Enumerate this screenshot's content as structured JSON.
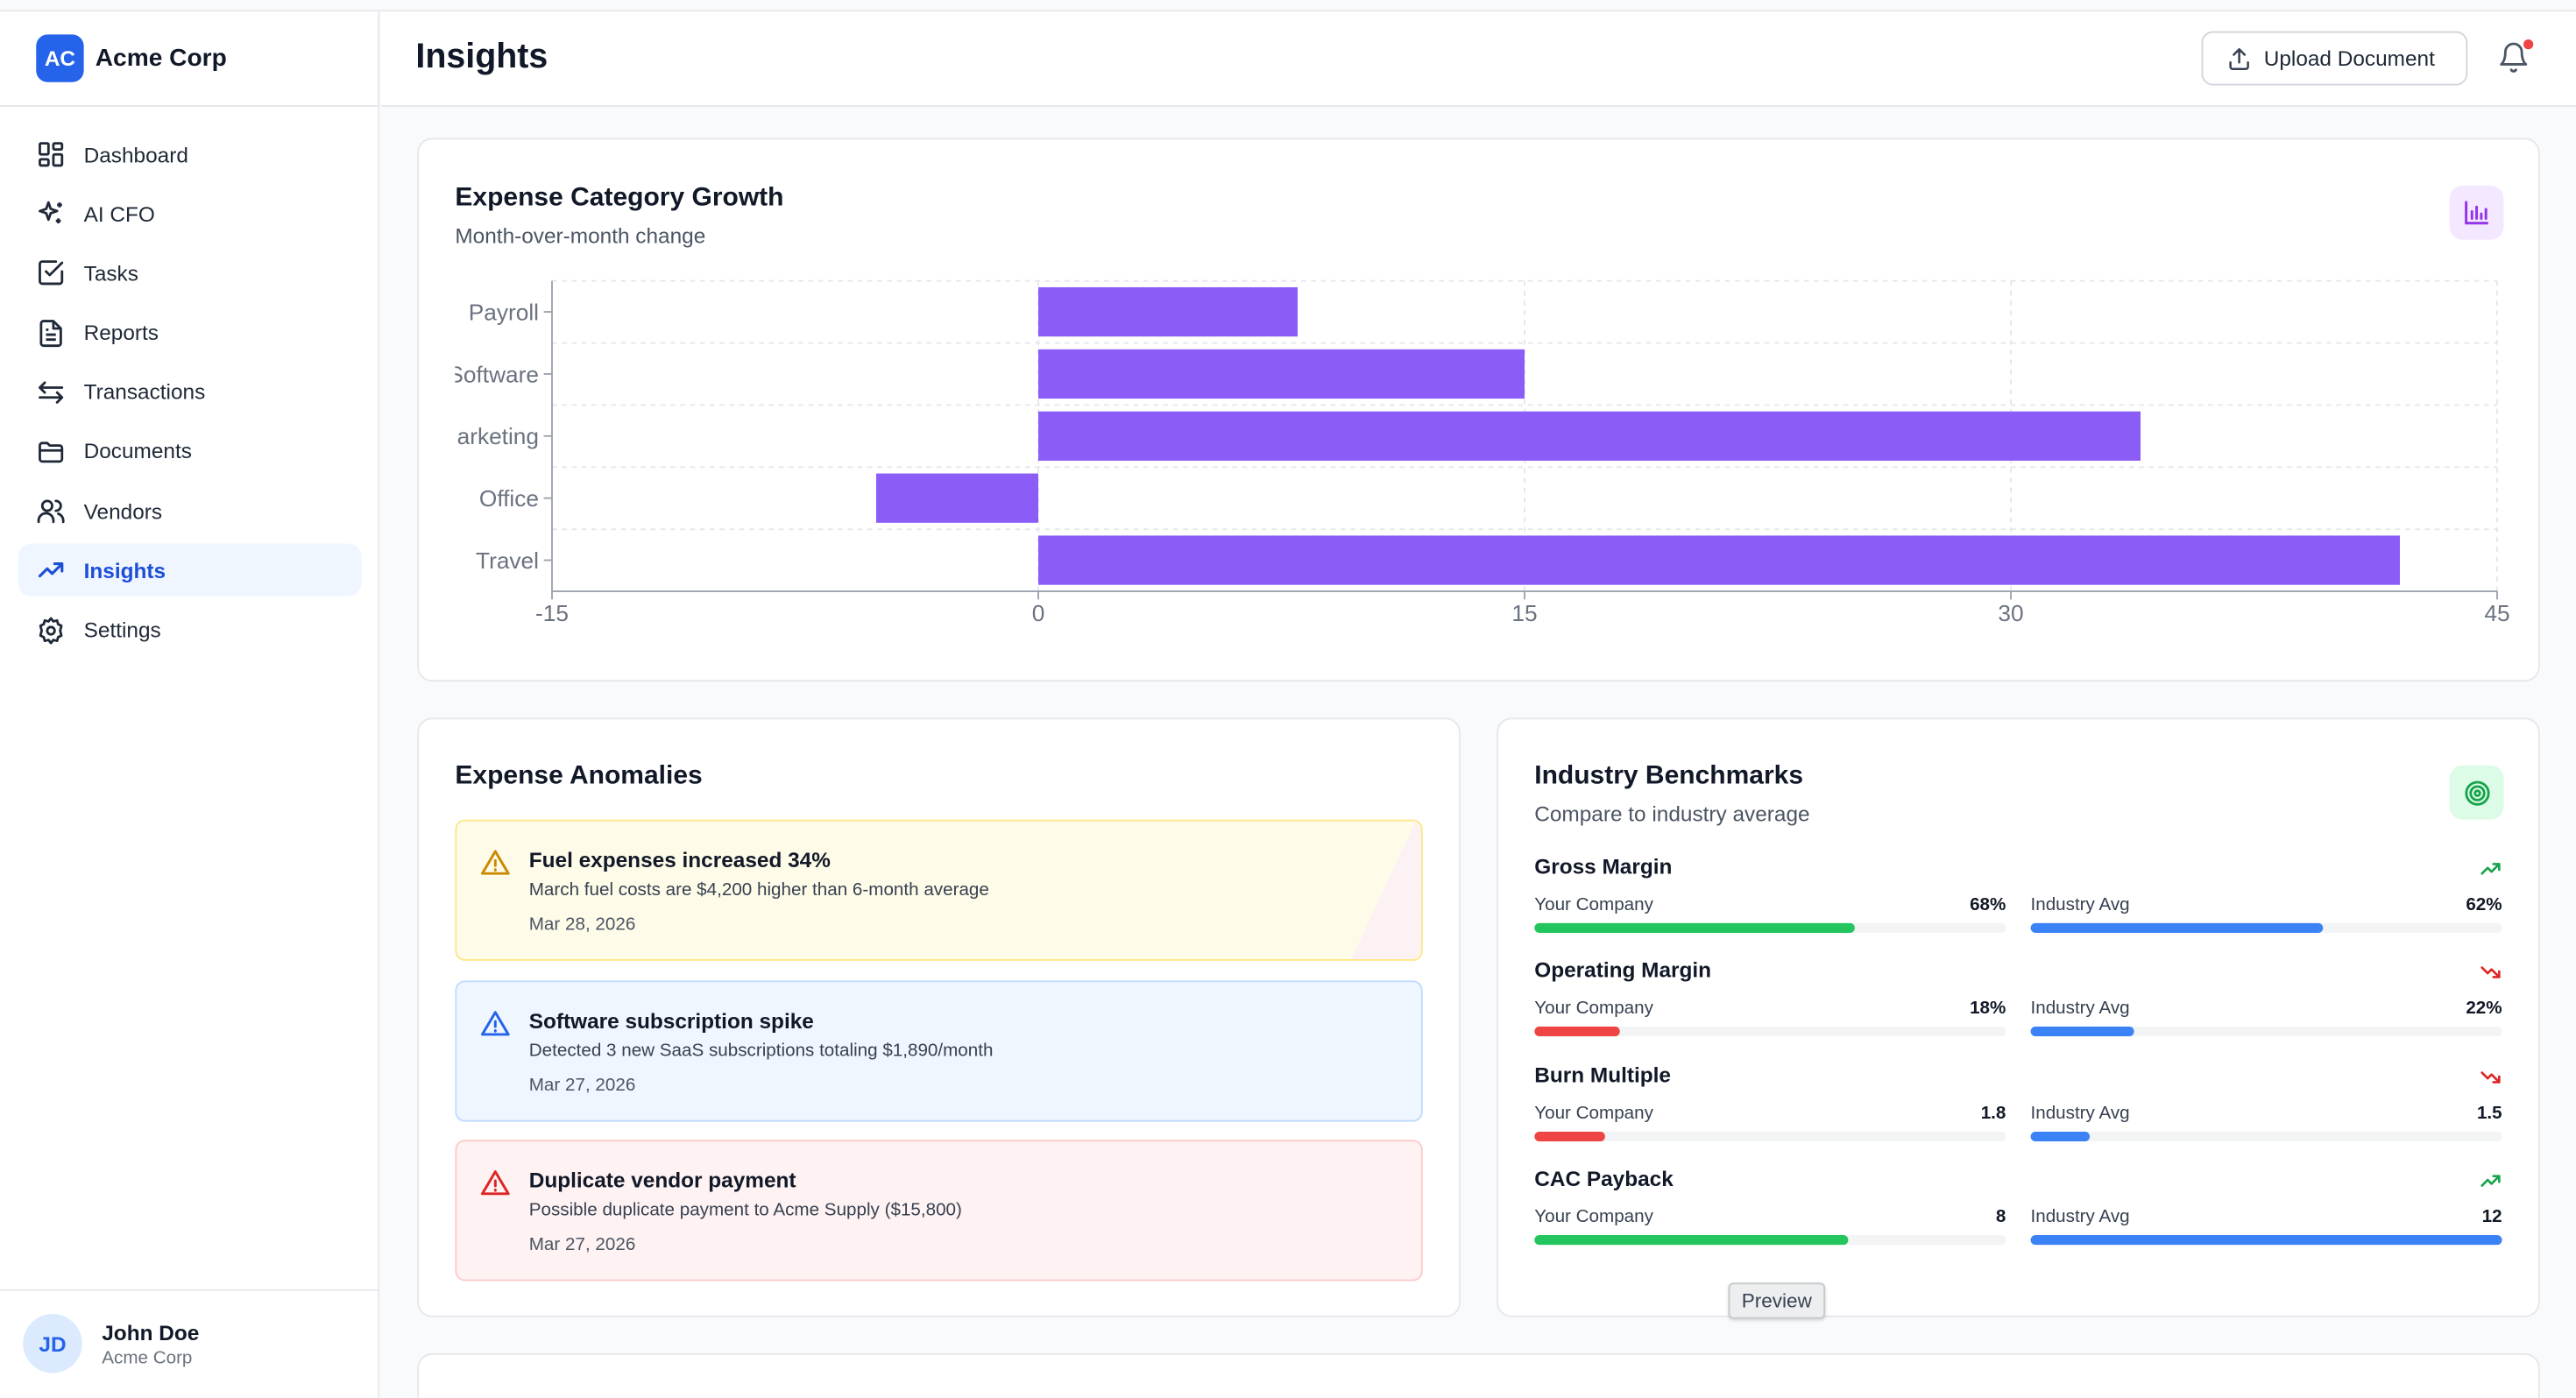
{
  "app": {
    "logo_initials": "AC",
    "name": "Acme Corp"
  },
  "sidebar": {
    "items": [
      {
        "label": "Dashboard",
        "icon": "grid-icon",
        "active": false
      },
      {
        "label": "AI CFO",
        "icon": "sparkles-icon",
        "active": false
      },
      {
        "label": "Tasks",
        "icon": "check-square-icon",
        "active": false
      },
      {
        "label": "Reports",
        "icon": "file-text-icon",
        "active": false
      },
      {
        "label": "Transactions",
        "icon": "arrows-exchange-icon",
        "active": false
      },
      {
        "label": "Documents",
        "icon": "folder-icon",
        "active": false
      },
      {
        "label": "Vendors",
        "icon": "users-icon",
        "active": false
      },
      {
        "label": "Insights",
        "icon": "trending-up-icon",
        "active": true
      },
      {
        "label": "Settings",
        "icon": "gear-icon",
        "active": false
      }
    ]
  },
  "user": {
    "initials": "JD",
    "name": "John Doe",
    "org": "Acme Corp"
  },
  "header": {
    "title": "Insights",
    "upload_label": "Upload Document"
  },
  "growth_card": {
    "title": "Expense Category Growth",
    "subtitle": "Month-over-month change",
    "icon": "bar-chart-icon"
  },
  "chart_data": {
    "type": "bar",
    "orientation": "horizontal",
    "categories": [
      "Payroll",
      "Software",
      "Marketing",
      "Office",
      "Travel"
    ],
    "visible_category_labels": [
      "Payroll",
      "Software",
      "arketing",
      "Office",
      "Travel"
    ],
    "values": [
      8,
      15,
      34,
      -5,
      42
    ],
    "xlim": [
      -15,
      45
    ],
    "xticks": [
      -15,
      0,
      15,
      30,
      45
    ],
    "xtick_labels": [
      "-15",
      "0",
      "15",
      "30",
      "45"
    ],
    "title": "Expense Category Growth",
    "subtitle": "Month-over-month change",
    "bar_color": "#8b5cf6",
    "grid": true
  },
  "anomalies_card": {
    "title": "Expense Anomalies",
    "items": [
      {
        "title": "Fuel expenses increased 34%",
        "description": "March fuel costs are $4,200 higher than 6-month average",
        "date": "Mar 28, 2026",
        "severity": "warning",
        "icon": "warning-triangle-icon",
        "bg": "#fefce8",
        "border": "#fde68a",
        "icon_color": "#ca8a04"
      },
      {
        "title": "Software subscription spike",
        "description": "Detected 3 new SaaS subscriptions totaling $1,890/month",
        "date": "Mar 27, 2026",
        "severity": "info",
        "icon": "warning-triangle-icon",
        "bg": "#eff6ff",
        "border": "#bfdbfe",
        "icon_color": "#2563eb"
      },
      {
        "title": "Duplicate vendor payment",
        "description": "Possible duplicate payment to Acme Supply ($15,800)",
        "date": "Mar 27, 2026",
        "severity": "error",
        "icon": "warning-triangle-icon",
        "bg": "#fef2f2",
        "border": "#fecaca",
        "icon_color": "#dc2626"
      }
    ]
  },
  "benchmarks_card": {
    "title": "Industry Benchmarks",
    "subtitle": "Compare to industry average",
    "icon": "target-icon",
    "your_label": "Your Company",
    "industry_label": "Industry Avg",
    "metrics": [
      {
        "name": "Gross Margin",
        "company": "68%",
        "industry": "62%",
        "company_fill": 0.68,
        "industry_fill": 0.62,
        "trend": "up",
        "company_color": "#22c55e"
      },
      {
        "name": "Operating Margin",
        "company": "18%",
        "industry": "22%",
        "company_fill": 0.18,
        "industry_fill": 0.22,
        "trend": "down",
        "company_color": "#ef4444"
      },
      {
        "name": "Burn Multiple",
        "company": "1.8",
        "industry": "1.5",
        "company_fill": 0.15,
        "industry_fill": 0.125,
        "trend": "down",
        "company_color": "#ef4444"
      },
      {
        "name": "CAC Payback",
        "company": "8",
        "industry": "12",
        "company_fill": 0.667,
        "industry_fill": 1.0,
        "trend": "up",
        "company_color": "#22c55e"
      }
    ]
  },
  "preview_label": "Preview",
  "colors": {
    "accent": "#2563eb",
    "bar": "#8b5cf6",
    "industry_bar": "#3b82f6",
    "up": "#16a34a",
    "down": "#dc2626"
  }
}
